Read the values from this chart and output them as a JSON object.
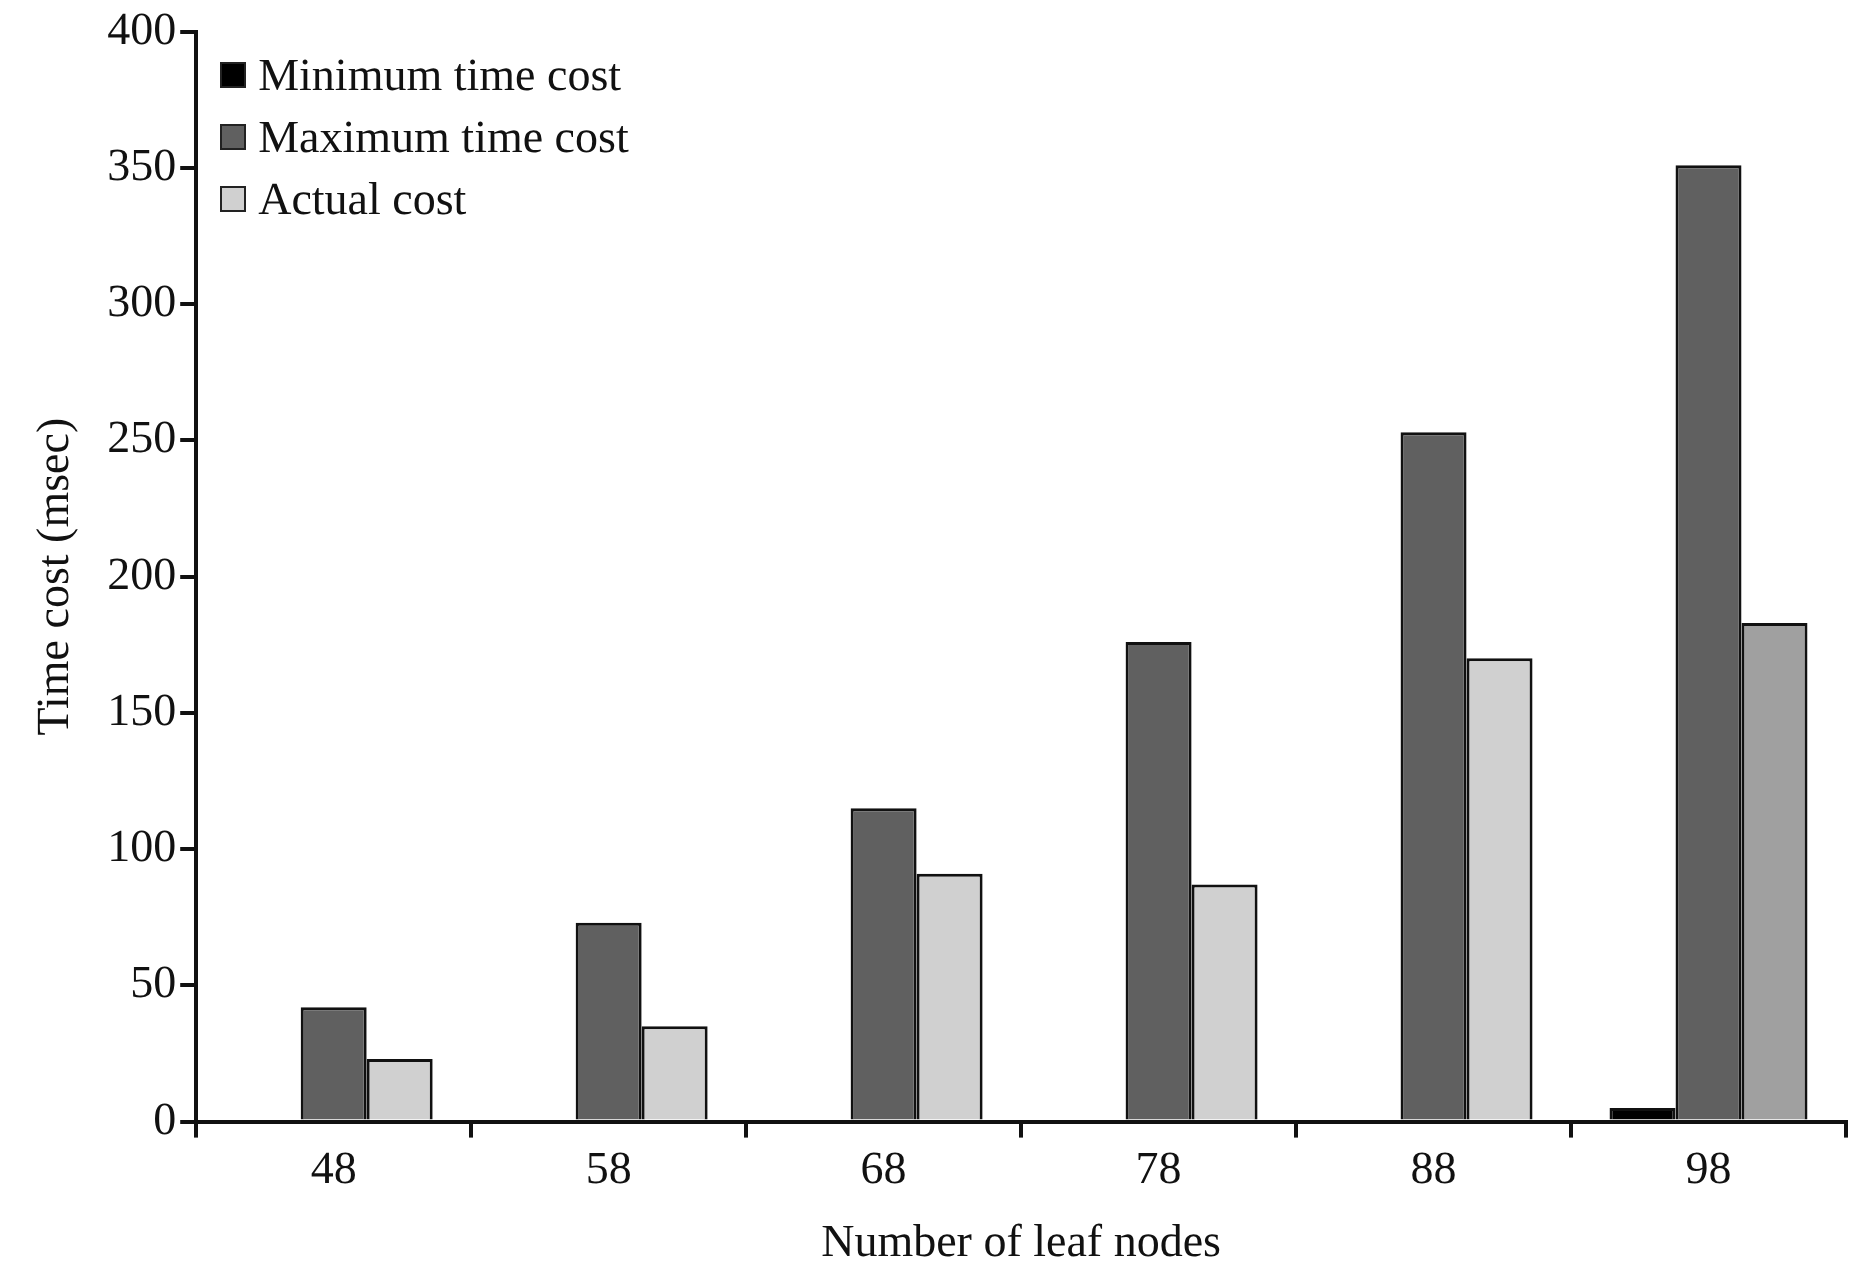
{
  "chart_data": {
    "type": "bar",
    "xlabel": "Number of leaf nodes",
    "ylabel": "Time cost (msec)",
    "categories": [
      "48",
      "58",
      "68",
      "78",
      "88",
      "98"
    ],
    "series": [
      {
        "name": "Minimum time cost",
        "color": "#000000",
        "values": [
          null,
          null,
          null,
          null,
          null,
          5
        ]
      },
      {
        "name": "Maximum time cost",
        "color": "#606060",
        "values": [
          42,
          73,
          115,
          176,
          253,
          351
        ]
      },
      {
        "name": "Actual cost",
        "color": "#d0d0d0",
        "colors": [
          "#d0d0d0",
          "#d0d0d0",
          "#d0d0d0",
          "#d0d0d0",
          "#d0d0d0",
          "#a0a0a0"
        ],
        "values": [
          23,
          35,
          91,
          87,
          170,
          183
        ]
      }
    ],
    "ylim": [
      0,
      400
    ],
    "yticks": [
      0,
      50,
      100,
      150,
      200,
      250,
      300,
      350,
      400
    ],
    "legend": "top left"
  }
}
